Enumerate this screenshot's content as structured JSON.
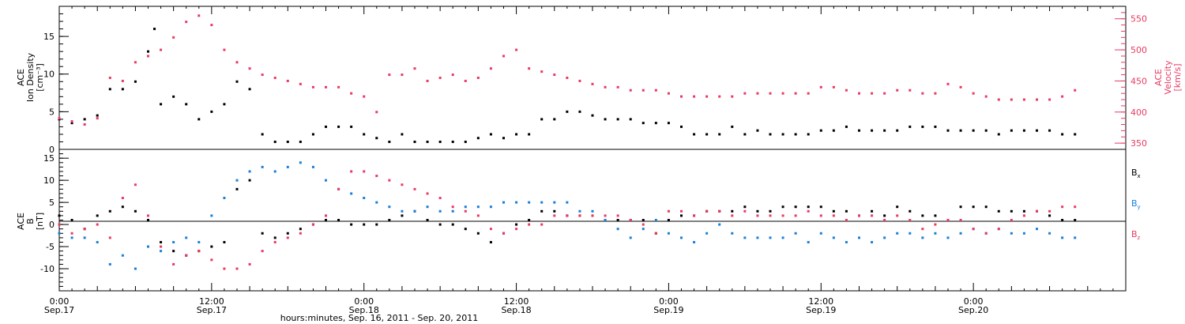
{
  "colors": {
    "black": "#000000",
    "red": "#e83a62",
    "blue": "#1a7fd8"
  },
  "chart_data": [
    {
      "type": "scatter",
      "panel": "top",
      "ylabel_left": [
        "ACE",
        "Ion Density",
        "[cm⁻³]"
      ],
      "ylabel_right": [
        "ACE",
        "Velocity",
        "[km/s]"
      ],
      "left_ylim": [
        0,
        19
      ],
      "left_ticks": [
        "0",
        "5",
        "10",
        "15"
      ],
      "right_ylim": [
        340,
        570
      ],
      "right_ticks": [
        "350",
        "400",
        "450",
        "500",
        "550"
      ],
      "xlim_hours": [
        0,
        84
      ],
      "series": [
        {
          "axis": "left",
          "color": "#000000",
          "x": [
            0,
            1,
            2,
            3,
            4,
            5,
            6,
            7,
            7.5,
            8,
            9,
            10,
            11,
            12,
            13,
            14,
            15,
            16,
            17,
            18,
            19,
            20,
            21,
            22,
            23,
            24,
            25,
            26,
            27,
            28,
            29,
            30,
            31,
            32,
            33,
            34,
            35,
            36,
            37,
            38,
            39,
            40,
            41,
            42,
            43,
            44,
            45,
            46,
            47,
            48,
            49,
            50,
            51,
            52,
            53,
            54,
            55,
            56,
            57,
            58,
            59,
            60,
            61,
            62,
            63,
            64,
            65,
            66,
            67,
            68,
            69,
            70,
            71,
            72,
            73,
            74,
            75,
            76,
            77,
            78,
            79,
            80
          ],
          "y": [
            4,
            3.5,
            4,
            4.5,
            8,
            8,
            9,
            13,
            16,
            6,
            7,
            6,
            4,
            5,
            6,
            9,
            8,
            2,
            1,
            1,
            1,
            2,
            3,
            3,
            3,
            2,
            1.5,
            1,
            2,
            1,
            1,
            1,
            1,
            1,
            1.5,
            2,
            1.5,
            2,
            2,
            4,
            4,
            5,
            5,
            4.5,
            4,
            4,
            4,
            3.5,
            3.5,
            3.5,
            3,
            2,
            2,
            2,
            3,
            2,
            2.5,
            2,
            2,
            2,
            2,
            2.5,
            2.5,
            3,
            2.5,
            2.5,
            2.5,
            2.5,
            3,
            3,
            3,
            2.5,
            2.5,
            2.5,
            2.5,
            2,
            2.5,
            2.5,
            2.5,
            2.5,
            2,
            2
          ]
        },
        {
          "axis": "right",
          "color": "#e83a62",
          "x": [
            0,
            1,
            2,
            3,
            4,
            5,
            6,
            7,
            8,
            9,
            10,
            11,
            12,
            13,
            14,
            15,
            16,
            17,
            18,
            19,
            20,
            21,
            22,
            23,
            24,
            25,
            26,
            27,
            28,
            29,
            30,
            31,
            32,
            33,
            34,
            35,
            36,
            37,
            38,
            39,
            40,
            41,
            42,
            43,
            44,
            45,
            46,
            47,
            48,
            49,
            50,
            51,
            52,
            53,
            54,
            55,
            56,
            57,
            58,
            59,
            60,
            61,
            62,
            63,
            64,
            65,
            66,
            67,
            68,
            69,
            70,
            71,
            72,
            73,
            74,
            75,
            76,
            77,
            78,
            79,
            80
          ],
          "y": [
            390,
            385,
            380,
            390,
            455,
            450,
            480,
            490,
            500,
            520,
            545,
            555,
            540,
            500,
            480,
            470,
            460,
            455,
            450,
            445,
            440,
            440,
            440,
            430,
            425,
            400,
            460,
            460,
            470,
            450,
            455,
            460,
            450,
            455,
            470,
            490,
            500,
            470,
            465,
            460,
            455,
            450,
            445,
            440,
            440,
            435,
            435,
            435,
            430,
            425,
            425,
            425,
            425,
            425,
            430,
            430,
            430,
            430,
            430,
            430,
            440,
            440,
            435,
            430,
            430,
            430,
            435,
            435,
            430,
            430,
            445,
            440,
            430,
            425,
            420,
            420,
            420,
            420,
            420,
            425,
            435
          ]
        }
      ]
    },
    {
      "type": "scatter",
      "panel": "bottom",
      "ylabel_left": [
        "ACE",
        "B",
        "[nT]"
      ],
      "ylim": [
        -15,
        17
      ],
      "ticks": [
        "-10",
        "-5",
        "0",
        "5",
        "10",
        "15"
      ],
      "xlim_hours": [
        0,
        84
      ],
      "legend": [
        "B",
        "B",
        "B"
      ],
      "legend_subscripts": [
        "x",
        "y",
        "z"
      ],
      "legend_position": "right",
      "series": [
        {
          "name": "Bx",
          "color": "#000000",
          "x": [
            0,
            1,
            2,
            3,
            4,
            5,
            6,
            7,
            8,
            9,
            10,
            11,
            12,
            13,
            14,
            15,
            16,
            17,
            18,
            19,
            20,
            21,
            22,
            23,
            24,
            25,
            26,
            27,
            28,
            29,
            30,
            31,
            32,
            33,
            34,
            35,
            36,
            37,
            38,
            39,
            40,
            41,
            42,
            43,
            44,
            45,
            46,
            47,
            48,
            49,
            50,
            51,
            52,
            53,
            54,
            55,
            56,
            57,
            58,
            59,
            60,
            61,
            62,
            63,
            64,
            65,
            66,
            67,
            68,
            69,
            70,
            71,
            72,
            73,
            74,
            75,
            76,
            77,
            78,
            79,
            80
          ],
          "y": [
            2,
            1,
            -1,
            2,
            3,
            4,
            3,
            1,
            -4,
            -6,
            -7,
            -6,
            -5,
            -4,
            8,
            10,
            -2,
            -3,
            -2,
            -1,
            0,
            1,
            1,
            0,
            0,
            0,
            1,
            2,
            3,
            1,
            0,
            0,
            -1,
            -2,
            -4,
            -2,
            0,
            1,
            3,
            3,
            2,
            2,
            2,
            1,
            1,
            1,
            1,
            -2,
            1,
            2,
            2,
            3,
            3,
            3,
            4,
            3,
            3,
            4,
            4,
            4,
            4,
            3,
            3,
            2,
            3,
            2,
            4,
            3,
            2,
            2,
            1,
            4,
            4,
            4,
            3,
            3,
            3,
            3,
            2,
            1,
            1
          ]
        },
        {
          "name": "By",
          "color": "#1a7fd8",
          "x": [
            0,
            1,
            2,
            3,
            4,
            5,
            6,
            7,
            8,
            9,
            10,
            11,
            12,
            13,
            14,
            15,
            16,
            17,
            18,
            19,
            20,
            21,
            22,
            23,
            24,
            25,
            26,
            27,
            28,
            29,
            30,
            31,
            32,
            33,
            34,
            35,
            36,
            37,
            38,
            39,
            40,
            41,
            42,
            43,
            44,
            45,
            46,
            47,
            48,
            49,
            50,
            51,
            52,
            53,
            54,
            55,
            56,
            57,
            58,
            59,
            60,
            61,
            62,
            63,
            64,
            65,
            66,
            67,
            68,
            69,
            70,
            71,
            72,
            73,
            74,
            75,
            76,
            77,
            78,
            79,
            80
          ],
          "y": [
            -2,
            -3,
            -3,
            -4,
            -9,
            -7,
            -10,
            -5,
            -6,
            -4,
            -3,
            -4,
            2,
            6,
            10,
            12,
            13,
            12,
            13,
            14,
            13,
            10,
            8,
            7,
            6,
            5,
            4,
            3,
            3,
            4,
            3,
            3,
            4,
            4,
            4,
            5,
            5,
            5,
            5,
            5,
            5,
            3,
            3,
            1,
            -1,
            -3,
            -1,
            1,
            -2,
            -3,
            -4,
            -2,
            0,
            -2,
            -3,
            -3,
            -3,
            -3,
            -2,
            -4,
            -2,
            -3,
            -4,
            -3,
            -4,
            -3,
            -2,
            -2,
            -3,
            -2,
            -3,
            -2,
            -1,
            -2,
            -1,
            -2,
            -2,
            -1,
            -2,
            -3,
            -3
          ]
        },
        {
          "name": "Bz",
          "color": "#e83a62",
          "x": [
            0,
            1,
            2,
            3,
            4,
            5,
            6,
            7,
            8,
            9,
            10,
            11,
            12,
            13,
            14,
            15,
            16,
            17,
            18,
            19,
            20,
            21,
            22,
            23,
            24,
            25,
            26,
            27,
            28,
            29,
            30,
            31,
            32,
            33,
            34,
            35,
            36,
            37,
            38,
            39,
            40,
            41,
            42,
            43,
            44,
            45,
            46,
            47,
            48,
            49,
            50,
            51,
            52,
            53,
            54,
            55,
            56,
            57,
            58,
            59,
            60,
            61,
            62,
            63,
            64,
            65,
            66,
            67,
            68,
            69,
            70,
            71,
            72,
            73,
            74,
            75,
            76,
            77,
            78,
            79,
            80
          ],
          "y": [
            0,
            -2,
            -1,
            0,
            -3,
            6,
            9,
            2,
            -5,
            -9,
            -7,
            -6,
            -8,
            -10,
            -10,
            -9,
            -6,
            -4,
            -3,
            -2,
            0,
            2,
            8,
            12,
            12,
            11,
            10,
            9,
            8,
            7,
            6,
            4,
            3,
            2,
            -1,
            -2,
            -1,
            0,
            0,
            2,
            2,
            2,
            2,
            2,
            2,
            1,
            0,
            -2,
            3,
            3,
            2,
            3,
            3,
            2,
            3,
            2,
            2,
            2,
            2,
            3,
            2,
            2,
            1,
            2,
            2,
            1,
            2,
            1,
            -1,
            0,
            1,
            1,
            -1,
            -2,
            -1,
            1,
            2,
            3,
            3,
            4,
            4
          ]
        }
      ]
    }
  ],
  "xaxis": {
    "tick_hours": [
      0,
      12,
      24,
      36,
      48,
      60,
      72
    ],
    "tick_time": [
      "0:00",
      "12:00",
      "0:00",
      "12:00",
      "0:00",
      "12:00",
      "0:00"
    ],
    "tick_date": [
      "Sep.17",
      "Sep.17",
      "Sep.18",
      "Sep.18",
      "Sep.19",
      "Sep.19",
      "Sep.20"
    ],
    "label": "hours:minutes, Sep. 16, 2011 - Sep. 20, 2011"
  }
}
